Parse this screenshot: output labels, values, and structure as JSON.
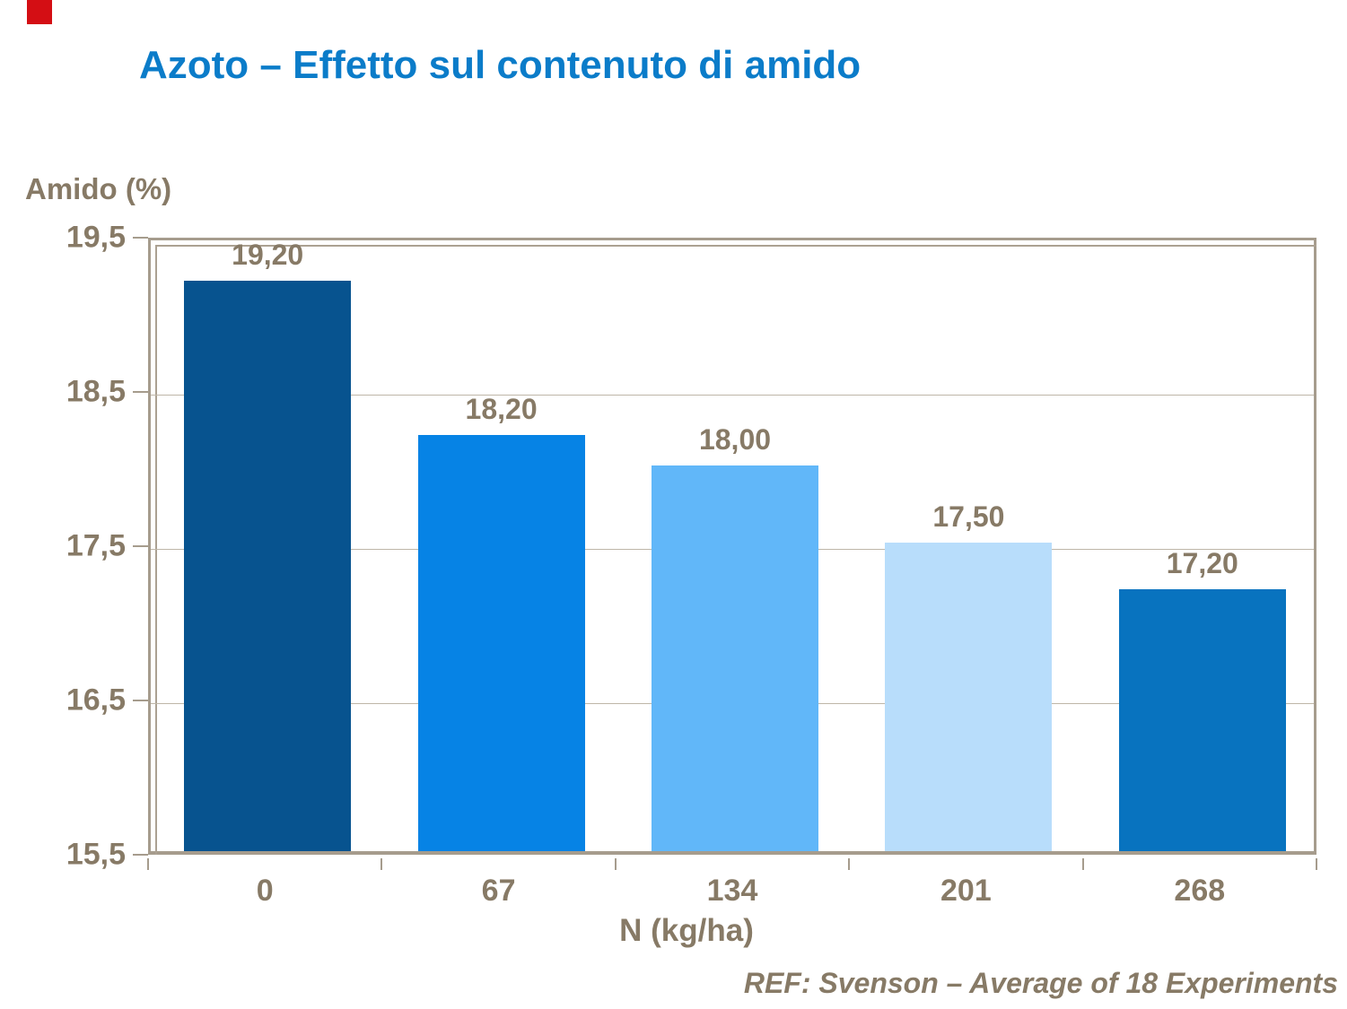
{
  "slide": {
    "title": "Azoto – Effetto sul contenuto di amido",
    "footer": "REF: Svenson – Average of 18 Experiments",
    "accent_red": "#d40e14"
  },
  "chart_data": {
    "type": "bar",
    "title": "Azoto – Effetto sul contenuto di amido",
    "ylabel": "Amido (%)",
    "xlabel": "N (kg/ha)",
    "categories": [
      "0",
      "67",
      "134",
      "201",
      "268"
    ],
    "values": [
      19.2,
      18.2,
      18.0,
      17.5,
      17.2
    ],
    "value_labels": [
      "19,20",
      "18,20",
      "18,00",
      "17,50",
      "17,20"
    ],
    "bar_colors": [
      "#07538f",
      "#0683e5",
      "#61b7f9",
      "#b8ddfb",
      "#0873bf"
    ],
    "ylim": [
      15.5,
      19.5
    ],
    "yticks": [
      19.5,
      18.5,
      17.5,
      16.5,
      15.5
    ],
    "ytick_labels": [
      "19,5",
      "18,5",
      "17,5",
      "16,5",
      "15,5"
    ],
    "grid": true,
    "legend": null,
    "annotation": "REF: Svenson – Average of 18 Experiments"
  },
  "colors": {
    "title": "#0b7cc9",
    "text": "#877a66",
    "axis": "#a69c8d",
    "gridline": "#beb6a8"
  }
}
